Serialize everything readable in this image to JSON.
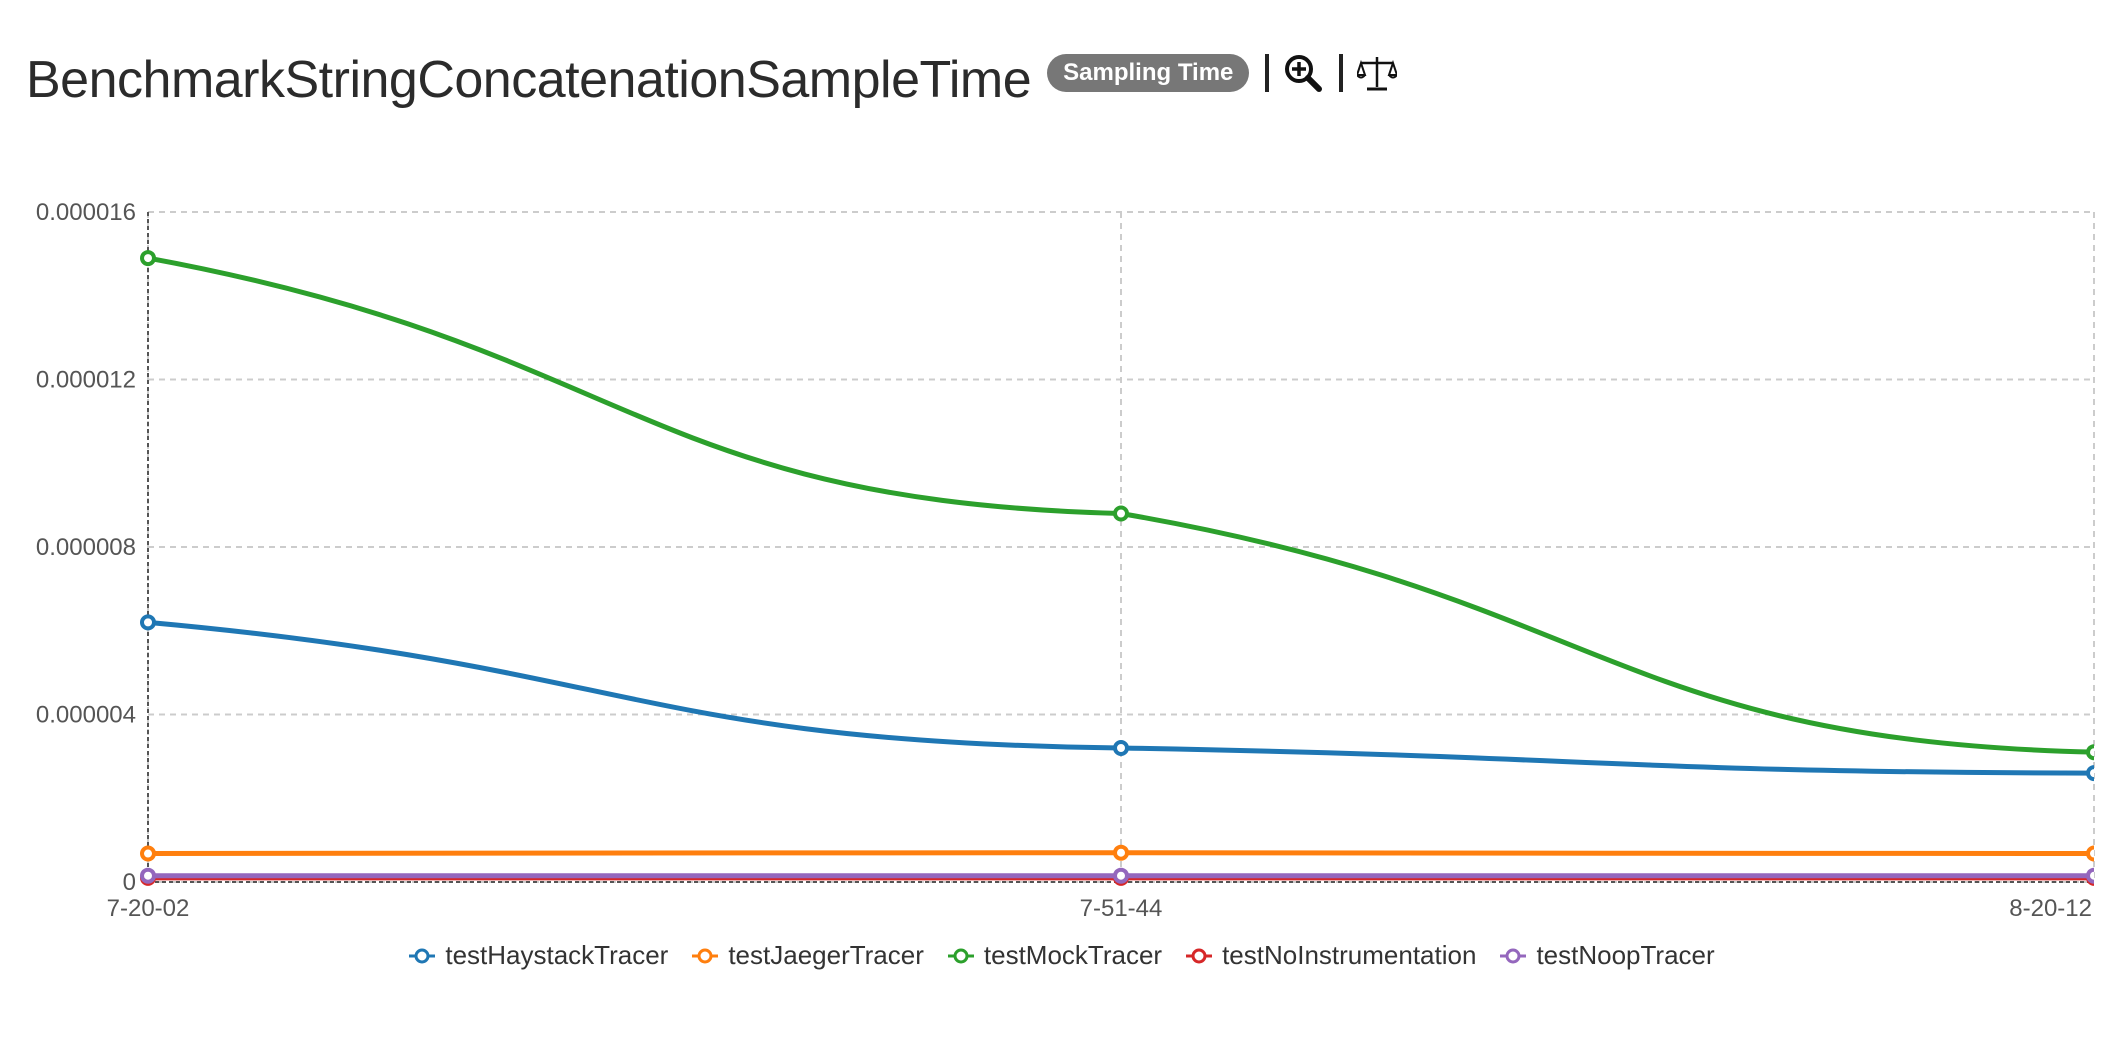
{
  "header": {
    "title": "BenchmarkStringConcatenationSampleTime",
    "badge": "Sampling Time",
    "zoom_icon": "zoom-in-icon",
    "compare_icon": "scale-balance-icon"
  },
  "chart_data": {
    "type": "line",
    "x_categories": [
      "7-20-02",
      "7-51-44",
      "8-20-12"
    ],
    "y_ticks": [
      "0.000016",
      "0.000012",
      "0.000008",
      "0.000004",
      "0"
    ],
    "ylim": [
      0,
      1.6e-05
    ],
    "grid": true,
    "legend_position": "bottom",
    "series": [
      {
        "name": "testHaystackTracer",
        "color": "#1f77b4",
        "values": [
          6.2e-06,
          3.2e-06,
          2.6e-06
        ]
      },
      {
        "name": "testJaegerTracer",
        "color": "#ff7f0e",
        "values": [
          6.8e-07,
          7e-07,
          6.8e-07
        ]
      },
      {
        "name": "testMockTracer",
        "color": "#2ca02c",
        "values": [
          1.49e-05,
          8.8e-06,
          3.1e-06
        ]
      },
      {
        "name": "testNoInstrumentation",
        "color": "#d62728",
        "values": [
          1e-07,
          1e-07,
          1e-07
        ]
      },
      {
        "name": "testNoopTracer",
        "color": "#9467bd",
        "values": [
          1.5e-07,
          1.5e-07,
          1.5e-07
        ]
      }
    ]
  }
}
